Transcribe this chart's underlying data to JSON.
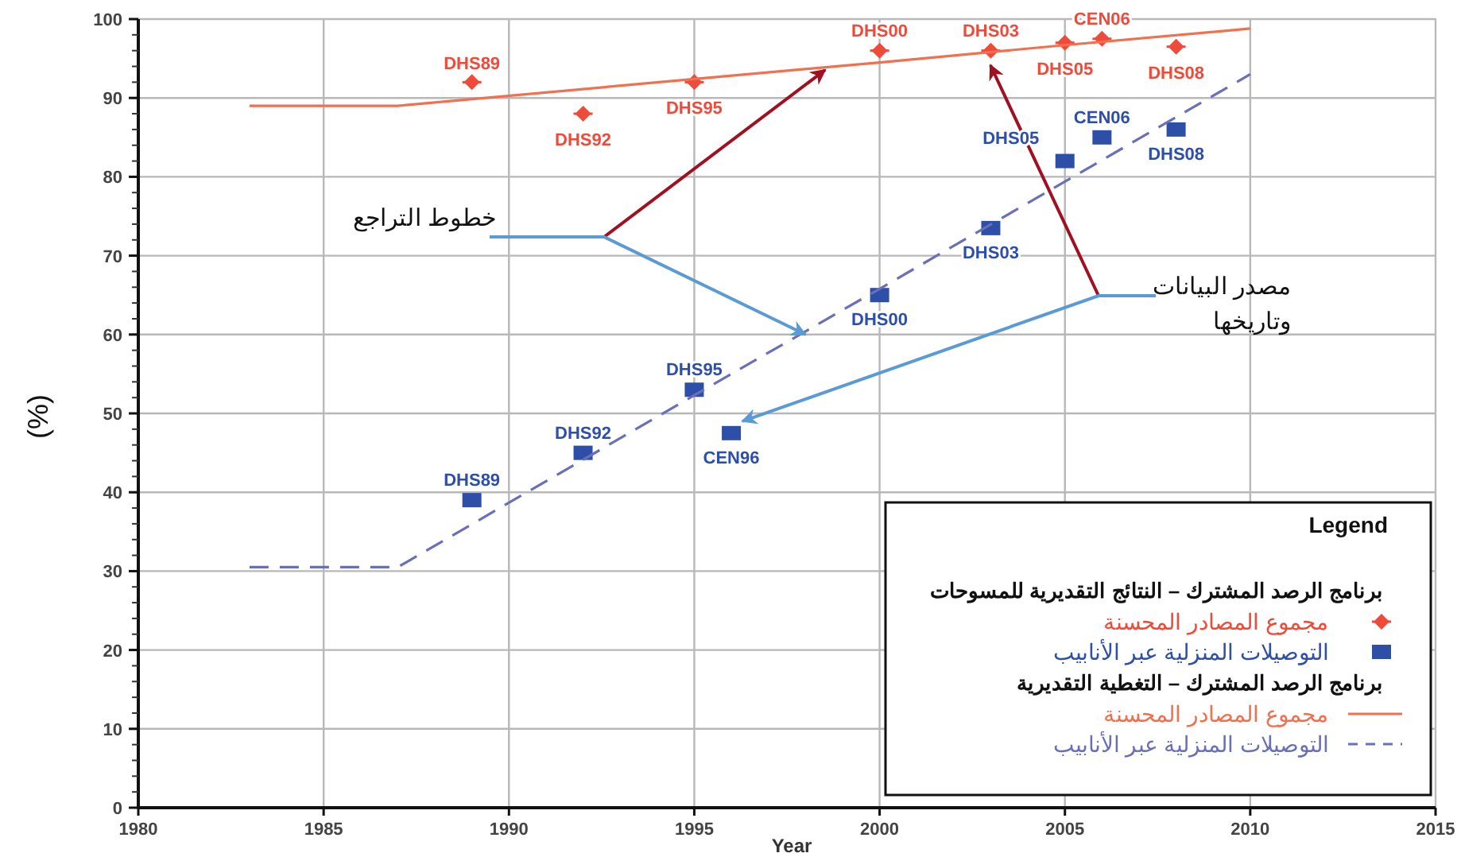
{
  "chart_data": {
    "type": "scatter",
    "xlabel": "Year",
    "ylabel": "(%)",
    "legend_title": "Legend",
    "xlim": [
      1980,
      2015
    ],
    "ylim": [
      0,
      100
    ],
    "xticks": [
      1980,
      1985,
      1990,
      1995,
      2000,
      2005,
      2010,
      2015
    ],
    "yticks": [
      0,
      10,
      20,
      30,
      40,
      50,
      60,
      70,
      80,
      90,
      100
    ],
    "grid": true,
    "legend": "bottom right",
    "series": [
      {
        "name": "مجموع المصادر المحسنة",
        "marker": "diamond",
        "color": "#ee4b3a",
        "x": [
          1989,
          1992,
          1995,
          2000,
          2003,
          2005,
          2006,
          2008
        ],
        "values": [
          92,
          88,
          92,
          96,
          96,
          97,
          97.5,
          96.5
        ]
      },
      {
        "name": "التوصيلات المنزلية عبر الأنابيب",
        "marker": "square",
        "color": "#2e4fa8",
        "x": [
          1989,
          1992,
          1995,
          1996,
          2000,
          2003,
          2005,
          2006,
          2008
        ],
        "values": [
          39,
          45,
          53,
          47.5,
          65,
          73.5,
          82,
          85,
          86
        ]
      },
      {
        "name": "مجموع المصادر المحسنة",
        "type": "line",
        "line_style": "solid",
        "color": "#f07050",
        "x": [
          1983,
          1987,
          1995,
          2000,
          2005,
          2010
        ],
        "values": [
          89,
          89,
          92.4,
          94.5,
          96.7,
          98.8
        ]
      },
      {
        "name": "التوصيلات المنزلية عبر الأنابيب",
        "type": "line",
        "line_style": "dashed",
        "color": "#6a70b8",
        "x": [
          1983,
          1987,
          1995,
          2000,
          2005,
          2010
        ],
        "values": [
          30.5,
          30.5,
          52.3,
          65.8,
          79.4,
          93
        ]
      }
    ],
    "annotations": [
      {
        "text": "خطوط التراجع",
        "x": 1998,
        "y": 60
      },
      {
        "text": "مصدر البيانات\nوتاريخها",
        "x": 1996.3,
        "y": 49
      },
      "برنامج الرصد المشترك – النتائج التقديرية للمسوحات",
      "برنامج الرصد المشترك – التغطية التقديرية",
      {
        "text": "DHS89",
        "x": 1989,
        "y": 92
      },
      {
        "text": "DHS92",
        "x": 1992,
        "y": 88
      },
      {
        "text": "DHS95",
        "x": 1995,
        "y": 92
      },
      {
        "text": "DHS00",
        "x": 2000,
        "y": 96
      },
      {
        "text": "DHS03",
        "x": 2003,
        "y": 96
      },
      {
        "text": "DHS05",
        "x": 2005,
        "y": 97
      },
      {
        "text": "CEN06",
        "x": 2006,
        "y": 97.5
      },
      {
        "text": "DHS08",
        "x": 2008,
        "y": 96.5
      },
      {
        "text": "DHS89",
        "x": 1989,
        "y": 39
      },
      {
        "text": "DHS92",
        "x": 1992,
        "y": 45
      },
      {
        "text": "DHS95",
        "x": 1995,
        "y": 53
      },
      {
        "text": "CEN96",
        "x": 1996,
        "y": 47.5
      },
      {
        "text": "DHS00",
        "x": 2000,
        "y": 65
      },
      {
        "text": "DHS03",
        "x": 2003,
        "y": 73.5
      },
      {
        "text": "DHS05",
        "x": 2005,
        "y": 82
      },
      {
        "text": "CEN06",
        "x": 2006,
        "y": 85
      },
      {
        "text": "DHS08",
        "x": 2008,
        "y": 86
      }
    ]
  }
}
